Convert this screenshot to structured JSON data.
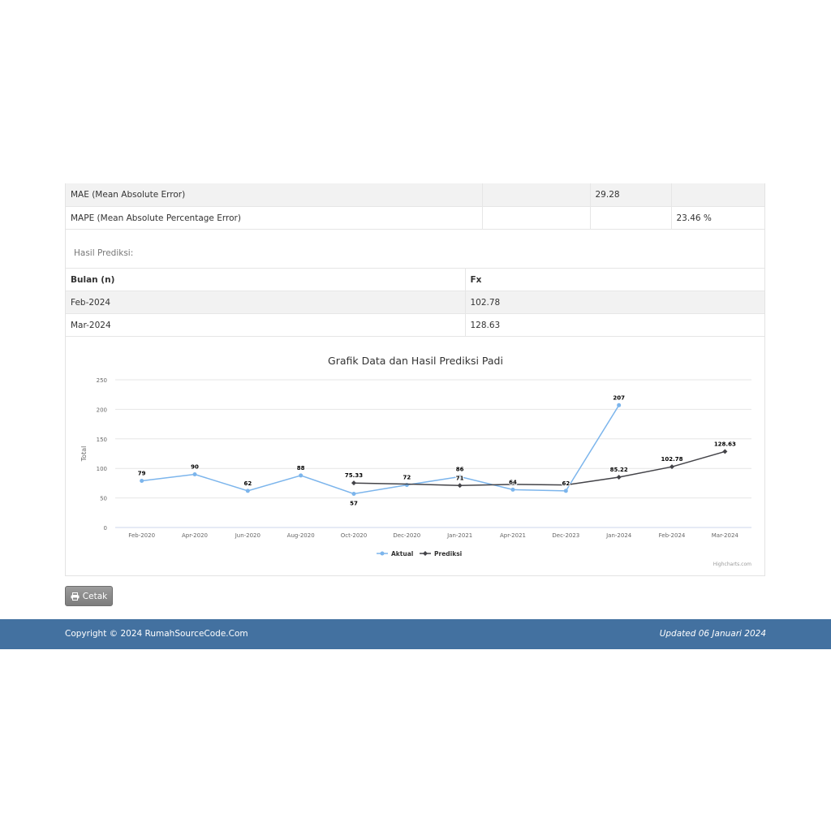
{
  "error_table": {
    "rows": [
      {
        "label": "MAE (Mean Absolute Error)",
        "col2": "",
        "col3": "29.28",
        "col4": ""
      },
      {
        "label": "MAPE (Mean Absolute Percentage Error)",
        "col2": "",
        "col3": "",
        "col4": "23.46 %"
      }
    ]
  },
  "prediction": {
    "section_label": "Hasil Prediksi:",
    "headers": [
      "Bulan (n)",
      "Fx"
    ],
    "rows": [
      {
        "month": "Feb-2024",
        "fx": "102.78"
      },
      {
        "month": "Mar-2024",
        "fx": "128.63"
      }
    ]
  },
  "chart_data": {
    "type": "line",
    "title": "Grafik Data dan Hasil Prediksi Padi",
    "ylabel": "Total",
    "xlabel": "",
    "ylim": [
      0,
      250
    ],
    "yticks": [
      0,
      50,
      100,
      150,
      200,
      250
    ],
    "categories": [
      "Feb-2020",
      "Apr-2020",
      "Jun-2020",
      "Aug-2020",
      "Oct-2020",
      "Dec-2020",
      "Jan-2021",
      "Apr-2021",
      "Dec-2023",
      "Jan-2024",
      "Feb-2024",
      "Mar-2024"
    ],
    "series": [
      {
        "name": "Aktual",
        "color": "#7cb5ec",
        "marker": "circle",
        "values": [
          79,
          90,
          62,
          88,
          57,
          72,
          86,
          64,
          62,
          207,
          null,
          null
        ]
      },
      {
        "name": "Prediksi",
        "color": "#434348",
        "marker": "diamond",
        "values": [
          null,
          null,
          null,
          null,
          75.33,
          null,
          71,
          null,
          null,
          85.22,
          102.78,
          128.63
        ],
        "drawn": [
          null,
          null,
          null,
          null,
          75.33,
          73.5,
          71,
          73,
          72,
          85.22,
          102.78,
          128.63
        ]
      }
    ],
    "legend_position": "bottom-center",
    "grid": true,
    "credits": "Highcharts.com"
  },
  "actions": {
    "print_label": "Cetak"
  },
  "footer": {
    "copyright": "Copyright © 2024 RumahSourceCode.Com",
    "updated": "Updated 06 Januari 2024"
  }
}
